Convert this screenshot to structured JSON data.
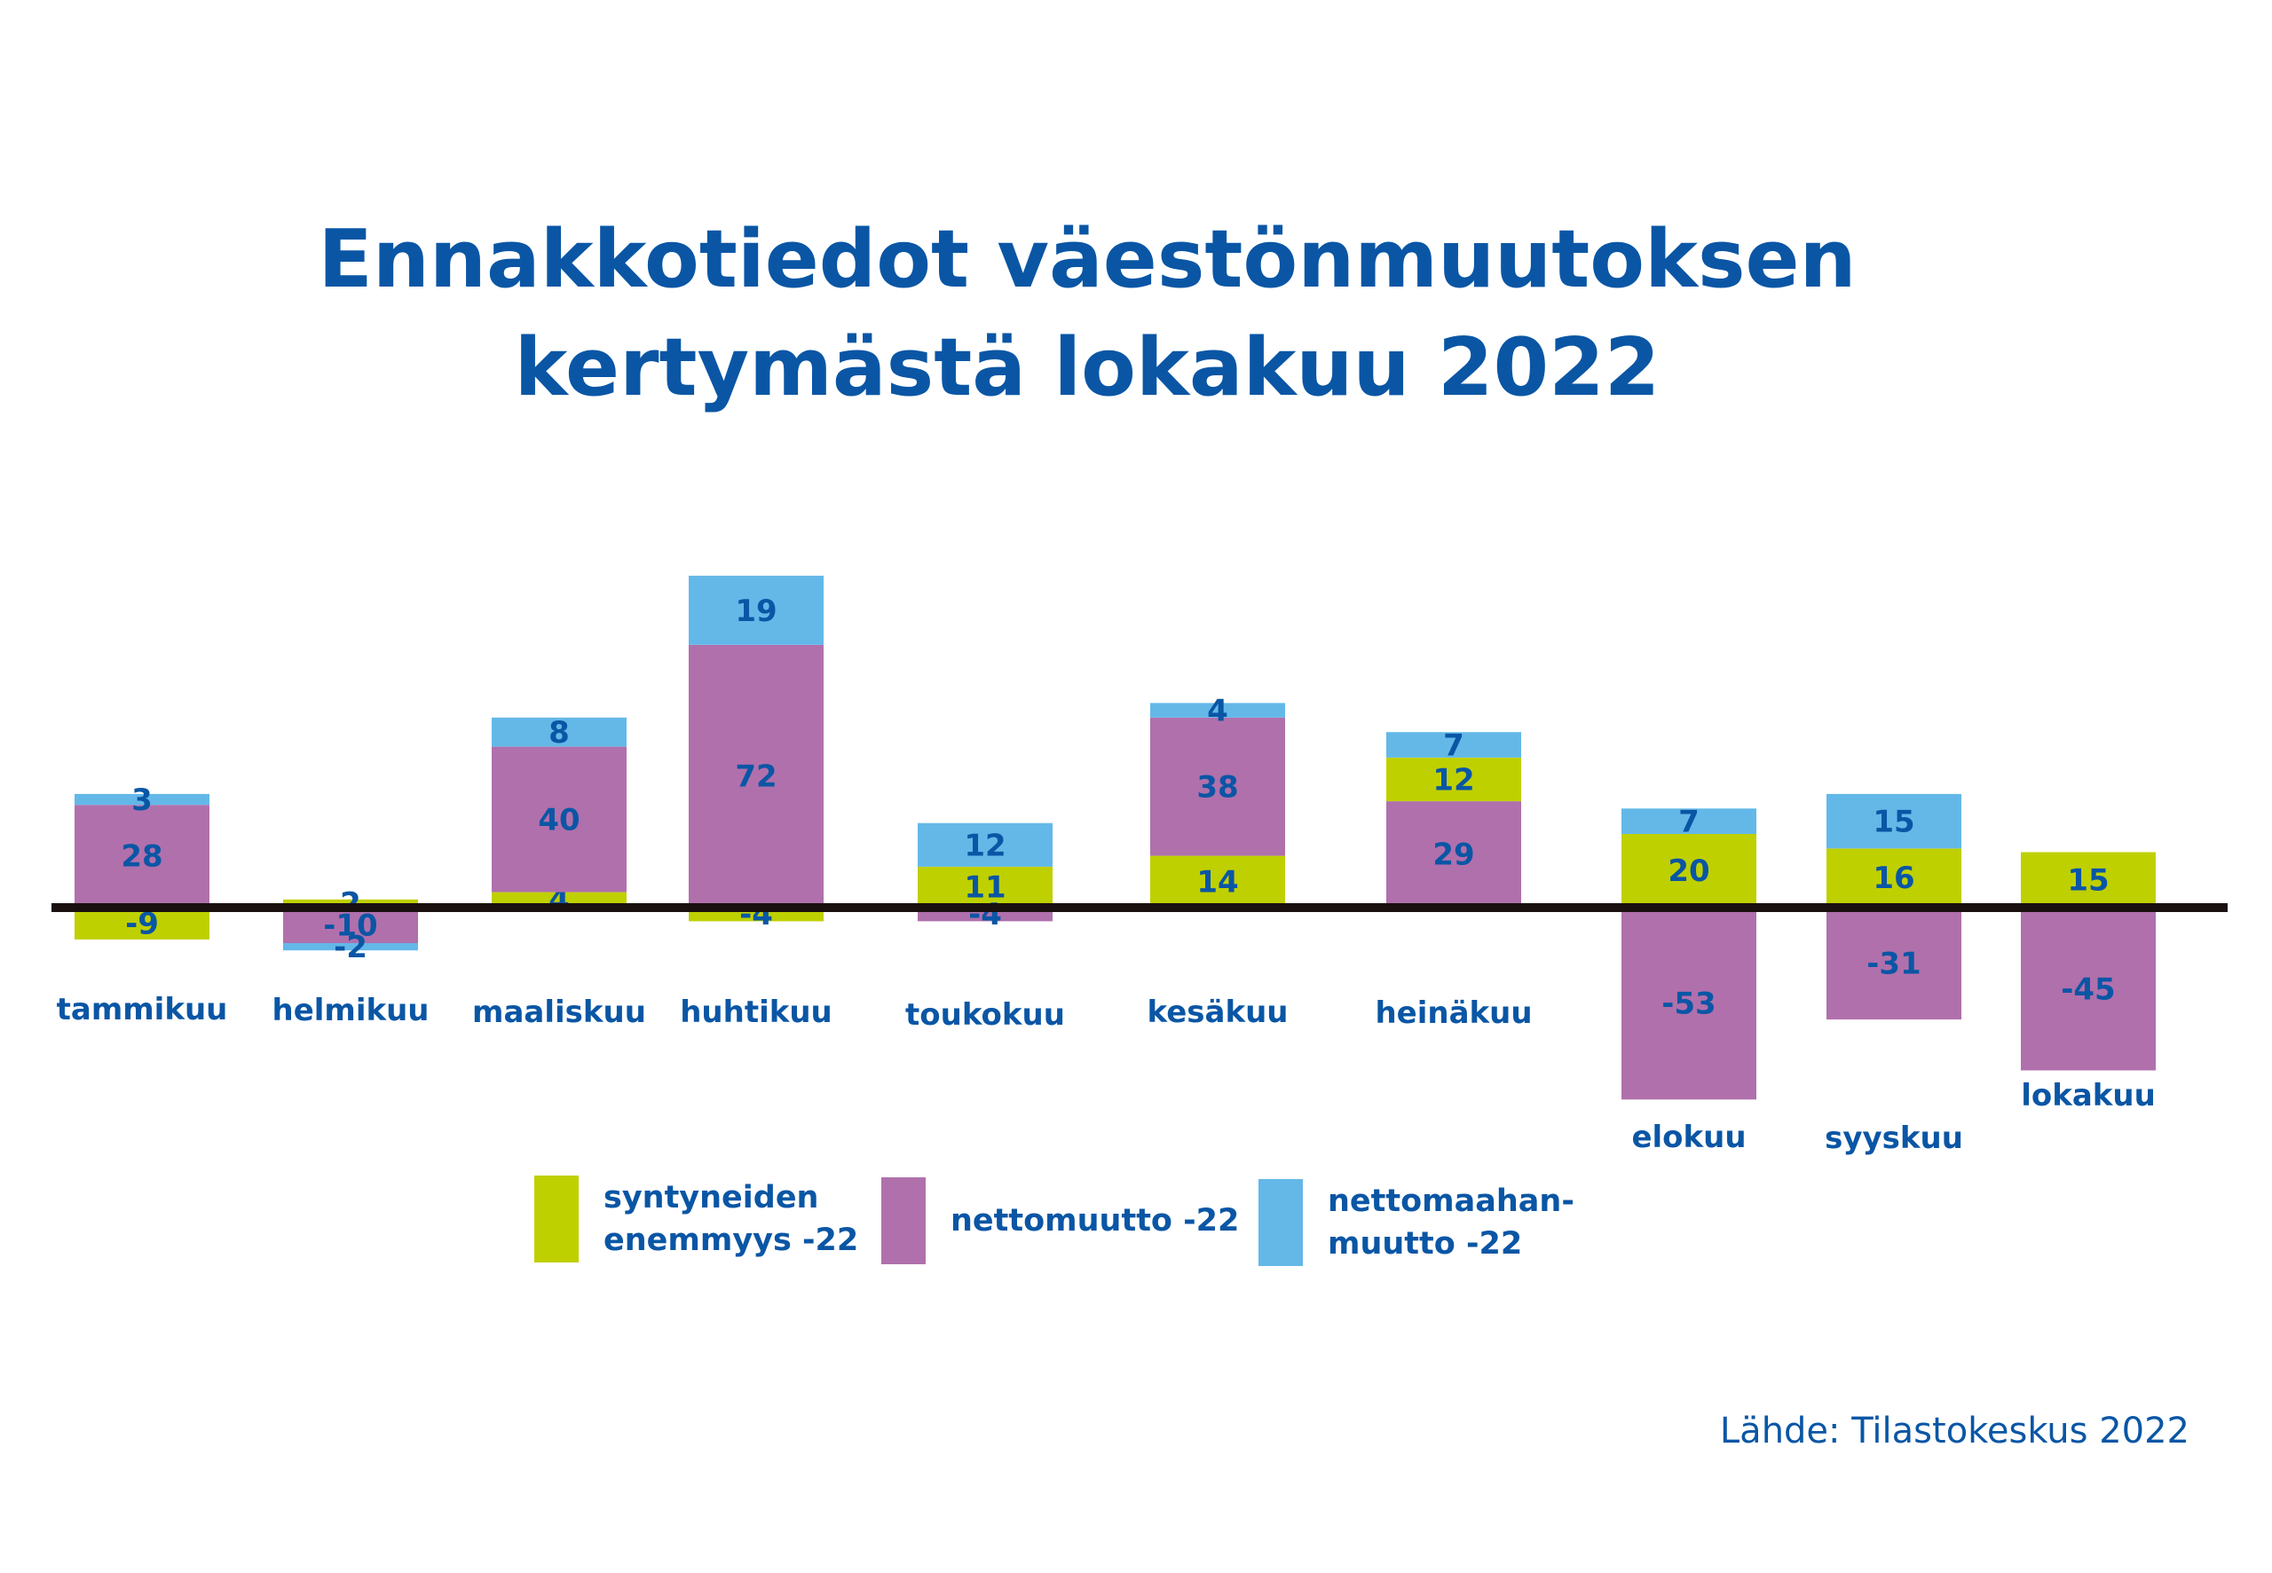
{
  "title_line1": "Ennakkotiedot väestönmuutoksen",
  "title_line2": "kertymästä lokakuu 2022",
  "source": "Lähde: Tilastokeskus 2022",
  "colors": {
    "text": "#0a56a5",
    "axis": "#1a1010",
    "syntyneiden": "#bfd000",
    "nettomuutto": "#b070ac",
    "nettomaahanmuutto": "#63b8e8"
  },
  "chart_data": {
    "type": "bar",
    "stacked": true,
    "title": "Ennakkotiedot väestönmuutoksen kertymästä lokakuu 2022",
    "categories": [
      "tammikuu",
      "helmikuu",
      "maaliskuu",
      "huhtikuu",
      "toukokuu",
      "kesäkuu",
      "heinäkuu",
      "elokuu",
      "syyskuu",
      "lokakuu"
    ],
    "series": [
      {
        "name": "syntyneiden enemmyys -22",
        "key": "syntyneiden",
        "values": [
          -9,
          2,
          4,
          -4,
          11,
          14,
          12,
          20,
          16,
          15
        ]
      },
      {
        "name": "nettomuutto -22",
        "key": "nettomuutto",
        "values": [
          28,
          -10,
          40,
          72,
          -4,
          38,
          29,
          -53,
          -31,
          -45
        ]
      },
      {
        "name": "nettomaahanmuutto -22",
        "key": "nettomaahanmuutto",
        "values": [
          3,
          -2,
          8,
          19,
          12,
          4,
          7,
          7,
          15,
          null
        ]
      }
    ],
    "legend": [
      {
        "label": "syntyneiden\nenemmyys -22",
        "key": "syntyneiden"
      },
      {
        "label": "nettomuutto -22",
        "key": "nettomuutto"
      },
      {
        "label": "nettomaahan-\nmuutto -22",
        "key": "nettomaahanmuutto"
      }
    ],
    "legend_position": "bottom",
    "grid": false,
    "ylim": [
      -55,
      95
    ]
  }
}
